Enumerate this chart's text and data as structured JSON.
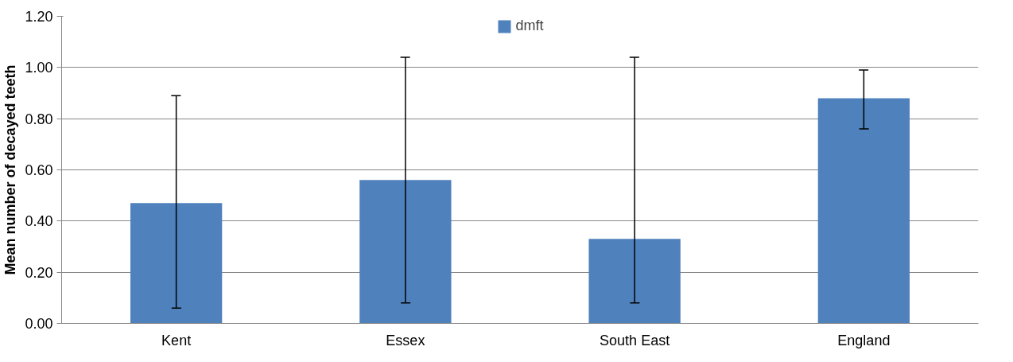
{
  "chart_data": {
    "type": "bar",
    "categories": [
      "Kent",
      "Essex",
      "South East",
      "England"
    ],
    "series": [
      {
        "name": "dmft",
        "color": "#4f81bd",
        "values": [
          0.47,
          0.56,
          0.33,
          0.88
        ],
        "errors": [
          [
            0.06,
            0.89
          ],
          [
            0.08,
            1.04
          ],
          [
            0.08,
            1.04
          ],
          [
            0.76,
            0.99
          ]
        ]
      }
    ],
    "ylabel": "Mean number of decayed teeth",
    "ylim": [
      0,
      1.2
    ],
    "yticks": [
      {
        "value": 0,
        "label": "0.00"
      },
      {
        "value": 0.2,
        "label": "0.20"
      },
      {
        "value": 0.4,
        "label": "0.40"
      },
      {
        "value": 0.6,
        "label": "0.60"
      },
      {
        "value": 0.8,
        "label": "0.80"
      },
      {
        "value": 1.0,
        "label": "1.00"
      },
      {
        "value": 1.2,
        "label": "1.20"
      }
    ],
    "grid": "y",
    "legend": "top"
  }
}
